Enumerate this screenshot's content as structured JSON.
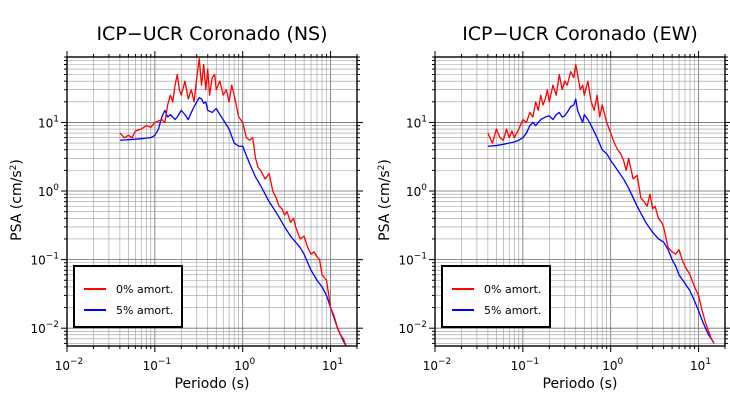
{
  "chart_data": [
    {
      "type": "line",
      "title": "ICP−UCR Coronado (NS)",
      "xlabel": "Periodo (s)",
      "ylabel_main": "PSA (cm/s",
      "ylabel_sup": "2",
      "ylabel_close": ")",
      "x_scale": "log",
      "y_scale": "log",
      "xlim": [
        0.01,
        20
      ],
      "ylim": [
        0.0055,
        90
      ],
      "grid": true,
      "legend_position": "bottom-left",
      "x_ticks": [
        {
          "base": "10",
          "exp": "−2"
        },
        {
          "base": "10",
          "exp": "−1"
        },
        {
          "base": "10",
          "exp": "0"
        },
        {
          "base": "10",
          "exp": "1"
        }
      ],
      "y_ticks": [
        {
          "base": "10",
          "exp": "−2"
        },
        {
          "base": "10",
          "exp": "−1"
        },
        {
          "base": "10",
          "exp": "0"
        },
        {
          "base": "10",
          "exp": "1"
        }
      ],
      "series": [
        {
          "name": "0% amort.",
          "color": "#ff0000",
          "x": [
            0.04,
            0.045,
            0.05,
            0.055,
            0.06,
            0.07,
            0.08,
            0.09,
            0.1,
            0.11,
            0.12,
            0.13,
            0.14,
            0.15,
            0.16,
            0.17,
            0.18,
            0.19,
            0.2,
            0.22,
            0.24,
            0.26,
            0.28,
            0.3,
            0.32,
            0.34,
            0.36,
            0.38,
            0.4,
            0.42,
            0.45,
            0.48,
            0.5,
            0.55,
            0.6,
            0.65,
            0.7,
            0.75,
            0.8,
            0.9,
            1.0,
            1.1,
            1.2,
            1.3,
            1.4,
            1.5,
            1.6,
            1.8,
            2.0,
            2.2,
            2.4,
            2.6,
            2.8,
            3.0,
            3.2,
            3.5,
            3.8,
            4.0,
            4.5,
            5.0,
            5.5,
            6.0,
            6.5,
            7.0,
            7.5,
            8.0,
            9.0,
            10.0,
            11.0,
            12.0,
            13.0,
            14.0,
            15.0
          ],
          "y": [
            7.0,
            6.0,
            6.5,
            6.0,
            7.5,
            8.0,
            9.0,
            8.5,
            10.0,
            10.5,
            11.0,
            10.0,
            18.0,
            25.0,
            20.0,
            35.0,
            50.0,
            30.0,
            25.0,
            40.0,
            22.0,
            30.0,
            20.0,
            45.0,
            85.0,
            35.0,
            70.0,
            30.0,
            60.0,
            25.0,
            45.0,
            50.0,
            30.0,
            40.0,
            25.0,
            30.0,
            20.0,
            35.0,
            25.0,
            12.0,
            10.0,
            6.0,
            5.5,
            6.0,
            3.0,
            2.2,
            2.0,
            1.5,
            1.8,
            1.0,
            0.8,
            0.6,
            0.55,
            0.45,
            0.5,
            0.35,
            0.4,
            0.3,
            0.2,
            0.22,
            0.15,
            0.12,
            0.13,
            0.11,
            0.1,
            0.06,
            0.05,
            0.02,
            0.015,
            0.01,
            0.008,
            0.007,
            0.0055
          ]
        },
        {
          "name": "5% amort.",
          "color": "#0000ff",
          "x": [
            0.04,
            0.05,
            0.06,
            0.07,
            0.08,
            0.09,
            0.1,
            0.11,
            0.12,
            0.13,
            0.14,
            0.15,
            0.16,
            0.17,
            0.18,
            0.2,
            0.22,
            0.24,
            0.26,
            0.28,
            0.3,
            0.32,
            0.34,
            0.36,
            0.38,
            0.4,
            0.45,
            0.5,
            0.55,
            0.6,
            0.7,
            0.8,
            0.9,
            1.0,
            1.2,
            1.4,
            1.6,
            1.8,
            2.0,
            2.5,
            3.0,
            3.5,
            4.0,
            4.5,
            5.0,
            5.5,
            6.0,
            7.0,
            8.0,
            9.0,
            10.0,
            11.0,
            12.0,
            13.0,
            14.0,
            15.0
          ],
          "y": [
            5.5,
            5.6,
            5.7,
            5.8,
            5.9,
            6.0,
            6.5,
            8.0,
            12.0,
            15.0,
            12.0,
            13.0,
            12.0,
            11.0,
            12.0,
            15.0,
            13.0,
            11.0,
            14.0,
            17.0,
            20.0,
            23.0,
            22.0,
            19.0,
            20.0,
            15.0,
            14.0,
            16.0,
            13.0,
            11.0,
            8.0,
            5.0,
            4.5,
            4.5,
            2.5,
            1.6,
            1.2,
            0.9,
            0.7,
            0.45,
            0.3,
            0.22,
            0.18,
            0.15,
            0.12,
            0.09,
            0.07,
            0.05,
            0.04,
            0.03,
            0.02,
            0.014,
            0.01,
            0.008,
            0.0065,
            0.0055
          ]
        }
      ]
    },
    {
      "type": "line",
      "title": "ICP−UCR Coronado (EW)",
      "xlabel": "Periodo (s)",
      "ylabel_main": "PSA (cm/s",
      "ylabel_sup": "2",
      "ylabel_close": ")",
      "x_scale": "log",
      "y_scale": "log",
      "xlim": [
        0.01,
        20
      ],
      "ylim": [
        0.0055,
        90
      ],
      "grid": true,
      "legend_position": "bottom-left",
      "x_ticks": [
        {
          "base": "10",
          "exp": "−2"
        },
        {
          "base": "10",
          "exp": "−1"
        },
        {
          "base": "10",
          "exp": "0"
        },
        {
          "base": "10",
          "exp": "1"
        }
      ],
      "y_ticks": [
        {
          "base": "10",
          "exp": "−2"
        },
        {
          "base": "10",
          "exp": "−1"
        },
        {
          "base": "10",
          "exp": "0"
        },
        {
          "base": "10",
          "exp": "1"
        }
      ],
      "series": [
        {
          "name": "0% amort.",
          "color": "#ff0000",
          "x": [
            0.04,
            0.045,
            0.05,
            0.055,
            0.06,
            0.065,
            0.07,
            0.075,
            0.08,
            0.09,
            0.1,
            0.11,
            0.12,
            0.13,
            0.14,
            0.15,
            0.16,
            0.17,
            0.18,
            0.19,
            0.2,
            0.22,
            0.24,
            0.26,
            0.28,
            0.3,
            0.32,
            0.35,
            0.38,
            0.4,
            0.42,
            0.45,
            0.48,
            0.5,
            0.55,
            0.6,
            0.65,
            0.7,
            0.75,
            0.8,
            0.9,
            1.0,
            1.1,
            1.2,
            1.3,
            1.4,
            1.5,
            1.6,
            1.8,
            2.0,
            2.2,
            2.4,
            2.6,
            2.8,
            3.0,
            3.2,
            3.5,
            3.8,
            4.0,
            4.5,
            5.0,
            5.5,
            6.0,
            6.5,
            7.0,
            8.0,
            9.0,
            10.0,
            11.0,
            12.0,
            13.0,
            14.0,
            15.0
          ],
          "y": [
            7.0,
            5.0,
            8.0,
            6.0,
            5.5,
            8.0,
            6.0,
            7.5,
            6.0,
            8.0,
            11.0,
            10.0,
            14.0,
            12.0,
            20.0,
            15.0,
            25.0,
            18.0,
            22.0,
            30.0,
            20.0,
            35.0,
            25.0,
            50.0,
            30.0,
            40.0,
            35.0,
            55.0,
            45.0,
            70.0,
            50.0,
            30.0,
            35.0,
            25.0,
            40.0,
            20.0,
            15.0,
            25.0,
            12.0,
            18.0,
            10.0,
            7.0,
            5.0,
            4.0,
            3.5,
            2.8,
            2.0,
            3.0,
            1.5,
            1.7,
            0.8,
            0.7,
            0.6,
            0.9,
            0.55,
            0.6,
            0.4,
            0.35,
            0.3,
            0.15,
            0.13,
            0.12,
            0.14,
            0.1,
            0.08,
            0.06,
            0.04,
            0.03,
            0.018,
            0.012,
            0.009,
            0.007,
            0.006
          ]
        },
        {
          "name": "5% amort.",
          "color": "#0000ff",
          "x": [
            0.04,
            0.05,
            0.06,
            0.07,
            0.08,
            0.09,
            0.1,
            0.11,
            0.12,
            0.13,
            0.14,
            0.15,
            0.16,
            0.18,
            0.2,
            0.22,
            0.24,
            0.26,
            0.28,
            0.3,
            0.32,
            0.35,
            0.38,
            0.4,
            0.42,
            0.45,
            0.48,
            0.5,
            0.55,
            0.6,
            0.7,
            0.8,
            0.9,
            1.0,
            1.2,
            1.4,
            1.6,
            1.8,
            2.0,
            2.5,
            3.0,
            3.5,
            4.0,
            4.5,
            5.0,
            5.5,
            6.0,
            7.0,
            8.0,
            9.0,
            10.0,
            11.0,
            12.0,
            13.0,
            14.0,
            15.0
          ],
          "y": [
            4.5,
            4.6,
            4.8,
            5.0,
            5.2,
            5.5,
            6.0,
            7.0,
            9.0,
            10.0,
            9.0,
            10.0,
            11.0,
            12.0,
            12.5,
            11.0,
            13.0,
            14.0,
            12.0,
            12.5,
            14.0,
            17.0,
            18.0,
            22.0,
            15.0,
            12.0,
            10.0,
            13.0,
            11.0,
            9.0,
            6.0,
            4.0,
            3.5,
            2.8,
            2.0,
            1.5,
            1.1,
            0.8,
            0.6,
            0.35,
            0.25,
            0.2,
            0.18,
            0.14,
            0.1,
            0.08,
            0.06,
            0.045,
            0.035,
            0.025,
            0.018,
            0.013,
            0.01,
            0.008,
            0.007,
            0.006
          ]
        }
      ]
    }
  ]
}
